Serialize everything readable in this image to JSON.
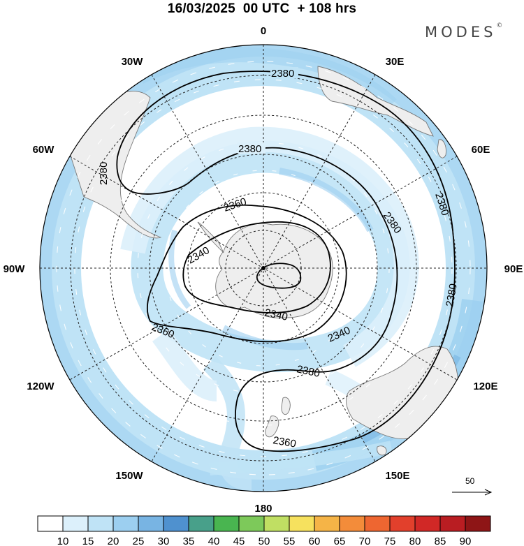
{
  "title": "16/03/2025  00 UTC  + 108 hrs",
  "brand": {
    "text": "MODES",
    "mark": "©"
  },
  "map": {
    "projection": "south polar stereographic",
    "meridian_labels": [
      {
        "id": "lon-0",
        "text": "0"
      },
      {
        "id": "lon-30e",
        "text": "30E"
      },
      {
        "id": "lon-60e",
        "text": "60E"
      },
      {
        "id": "lon-90e",
        "text": "90E"
      },
      {
        "id": "lon-120e",
        "text": "120E"
      },
      {
        "id": "lon-150e",
        "text": "150E"
      },
      {
        "id": "lon-180",
        "text": "180"
      },
      {
        "id": "lon-150w",
        "text": "150W"
      },
      {
        "id": "lon-120w",
        "text": "120W"
      },
      {
        "id": "lon-90w",
        "text": "90W"
      },
      {
        "id": "lon-60w",
        "text": "60W"
      },
      {
        "id": "lon-30w",
        "text": "30W"
      }
    ],
    "contour_labels": [
      "2380",
      "2380",
      "2380",
      "2380",
      "2380",
      "2380",
      "2380",
      "2360",
      "2360",
      "2360",
      "2340",
      "2340"
    ],
    "wind_speed_colors": [
      "#ffffff",
      "#dcf0fb",
      "#bfe3f6",
      "#9ccff0",
      "#78b4e3",
      "#4f91cf",
      "#48a08a",
      "#49b550",
      "#7dc95a",
      "#c0df63",
      "#f6e15e",
      "#f5b447",
      "#f38c3a",
      "#ee6631",
      "#e2402c",
      "#d12826",
      "#b91d22",
      "#8e1516"
    ],
    "wind_speed_ticks": [
      "10",
      "15",
      "20",
      "25",
      "30",
      "35",
      "40",
      "45",
      "50",
      "55",
      "60",
      "65",
      "70",
      "75",
      "80",
      "85",
      "90"
    ],
    "wind_vector_reference": "50"
  }
}
